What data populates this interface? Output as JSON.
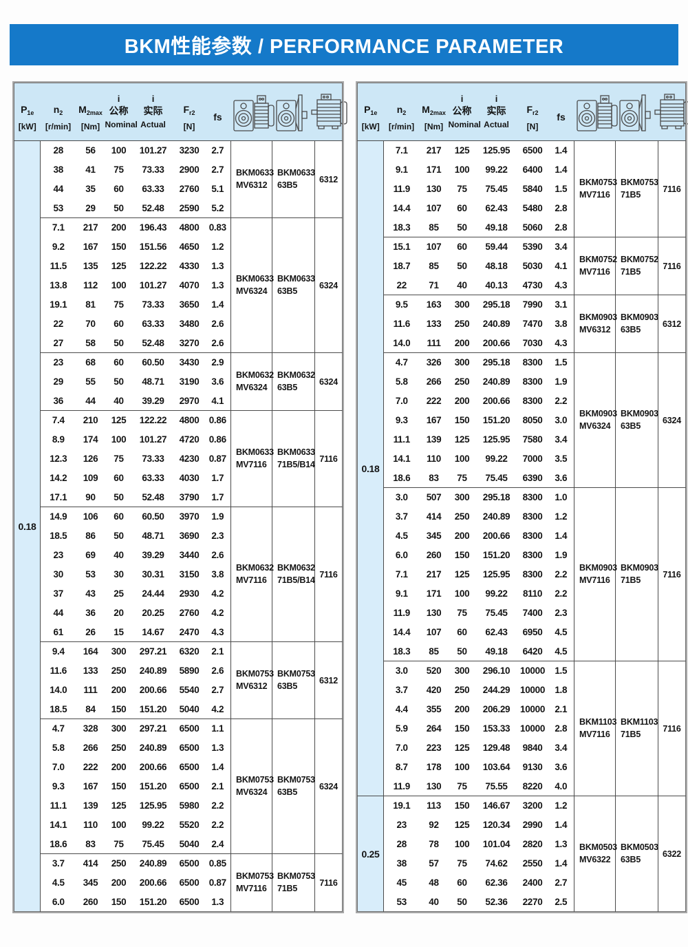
{
  "title": "BKM性能参数 / PERFORMANCE PARAMETER",
  "colors": {
    "banner_blue": "#1579c9",
    "header_bg": "#cde7f6",
    "power_col_bg": "#d8edfa",
    "grid_line": "#4a4a4a",
    "title_text": "#ffffff"
  },
  "header": {
    "columns": [
      {
        "key": "p1e",
        "top": "",
        "main": "P",
        "sub": "1e",
        "bottom": "[kW]"
      },
      {
        "key": "n2",
        "top": "",
        "main": "n",
        "sub": "2",
        "bottom": "[r/min]"
      },
      {
        "key": "m2max",
        "top": "",
        "main": "M",
        "sub": "2max",
        "bottom": "[Nm]"
      },
      {
        "key": "i-nominal",
        "top": "i",
        "main": "公称",
        "sub": "",
        "bottom": "Nominal"
      },
      {
        "key": "i-actual",
        "top": "i",
        "main": "实际",
        "sub": "",
        "bottom": "Actual"
      },
      {
        "key": "fr2",
        "top": "",
        "main": "F",
        "sub": "r2",
        "bottom": "[N]"
      },
      {
        "key": "fs",
        "top": "",
        "main": "fs",
        "sub": "",
        "bottom": ""
      }
    ],
    "icons": [
      {
        "name": "worm-gearmotor-icon"
      },
      {
        "name": "worm-gearbox-flange-icon"
      },
      {
        "name": "motor-icon"
      }
    ]
  },
  "tables": [
    {
      "name": "left",
      "groups": [
        {
          "power": "0.18",
          "block_count": 8
        }
      ],
      "blocks": [
        {
          "m1": [
            "BKM0633",
            "MV6312"
          ],
          "m2": [
            "BKM0633",
            "63B5"
          ],
          "m3": "6312",
          "rows": [
            [
              "28",
              "56",
              "100",
              "101.27",
              "3230",
              "2.7"
            ],
            [
              "38",
              "41",
              "75",
              "73.33",
              "2900",
              "2.7"
            ],
            [
              "44",
              "35",
              "60",
              "63.33",
              "2760",
              "5.1"
            ],
            [
              "53",
              "29",
              "50",
              "52.48",
              "2590",
              "5.2"
            ]
          ]
        },
        {
          "m1": [
            "BKM0633",
            "MV6324"
          ],
          "m2": [
            "BKM0633",
            "63B5"
          ],
          "m3": "6324",
          "rows": [
            [
              "7.1",
              "217",
              "200",
              "196.43",
              "4800",
              "0.83"
            ],
            [
              "9.2",
              "167",
              "150",
              "151.56",
              "4650",
              "1.2"
            ],
            [
              "11.5",
              "135",
              "125",
              "122.22",
              "4330",
              "1.3"
            ],
            [
              "13.8",
              "112",
              "100",
              "101.27",
              "4070",
              "1.3"
            ],
            [
              "19.1",
              "81",
              "75",
              "73.33",
              "3650",
              "1.4"
            ],
            [
              "22",
              "70",
              "60",
              "63.33",
              "3480",
              "2.6"
            ],
            [
              "27",
              "58",
              "50",
              "52.48",
              "3270",
              "2.6"
            ]
          ]
        },
        {
          "m1": [
            "BKM0632",
            "MV6324"
          ],
          "m2": [
            "BKM0632",
            "63B5"
          ],
          "m3": "6324",
          "rows": [
            [
              "23",
              "68",
              "60",
              "60.50",
              "3430",
              "2.9"
            ],
            [
              "29",
              "55",
              "50",
              "48.71",
              "3190",
              "3.6"
            ],
            [
              "36",
              "44",
              "40",
              "39.29",
              "2970",
              "4.1"
            ]
          ]
        },
        {
          "m1": [
            "BKM0633",
            "MV7116"
          ],
          "m2": [
            "BKM0633",
            "71B5/B14"
          ],
          "m3": "7116",
          "rows": [
            [
              "7.4",
              "210",
              "125",
              "122.22",
              "4800",
              "0.86"
            ],
            [
              "8.9",
              "174",
              "100",
              "101.27",
              "4720",
              "0.86"
            ],
            [
              "12.3",
              "126",
              "75",
              "73.33",
              "4230",
              "0.87"
            ],
            [
              "14.2",
              "109",
              "60",
              "63.33",
              "4030",
              "1.7"
            ],
            [
              "17.1",
              "90",
              "50",
              "52.48",
              "3790",
              "1.7"
            ]
          ]
        },
        {
          "m1": [
            "BKM0632",
            "MV7116"
          ],
          "m2": [
            "BKM0632",
            "71B5/B14"
          ],
          "m3": "7116",
          "rows": [
            [
              "14.9",
              "106",
              "60",
              "60.50",
              "3970",
              "1.9"
            ],
            [
              "18.5",
              "86",
              "50",
              "48.71",
              "3690",
              "2.3"
            ],
            [
              "23",
              "69",
              "40",
              "39.29",
              "3440",
              "2.6"
            ],
            [
              "30",
              "53",
              "30",
              "30.31",
              "3150",
              "3.8"
            ],
            [
              "37",
              "43",
              "25",
              "24.44",
              "2930",
              "4.2"
            ],
            [
              "44",
              "36",
              "20",
              "20.25",
              "2760",
              "4.2"
            ],
            [
              "61",
              "26",
              "15",
              "14.67",
              "2470",
              "4.3"
            ]
          ]
        },
        {
          "m1": [
            "BKM0753",
            "MV6312"
          ],
          "m2": [
            "BKM0753",
            "63B5"
          ],
          "m3": "6312",
          "rows": [
            [
              "9.4",
              "164",
              "300",
              "297.21",
              "6320",
              "2.1"
            ],
            [
              "11.6",
              "133",
              "250",
              "240.89",
              "5890",
              "2.6"
            ],
            [
              "14.0",
              "111",
              "200",
              "200.66",
              "5540",
              "2.7"
            ],
            [
              "18.5",
              "84",
              "150",
              "151.20",
              "5040",
              "4.2"
            ]
          ]
        },
        {
          "m1": [
            "BKM0753",
            "MV6324"
          ],
          "m2": [
            "BKM0753",
            "63B5"
          ],
          "m3": "6324",
          "rows": [
            [
              "4.7",
              "328",
              "300",
              "297.21",
              "6500",
              "1.1"
            ],
            [
              "5.8",
              "266",
              "250",
              "240.89",
              "6500",
              "1.3"
            ],
            [
              "7.0",
              "222",
              "200",
              "200.66",
              "6500",
              "1.4"
            ],
            [
              "9.3",
              "167",
              "150",
              "151.20",
              "6500",
              "2.1"
            ],
            [
              "11.1",
              "139",
              "125",
              "125.95",
              "5980",
              "2.2"
            ],
            [
              "14.1",
              "110",
              "100",
              "99.22",
              "5520",
              "2.2"
            ],
            [
              "18.6",
              "83",
              "75",
              "75.45",
              "5040",
              "2.4"
            ]
          ]
        },
        {
          "m1": [
            "BKM0753",
            "MV7116"
          ],
          "m2": [
            "BKM0753",
            "71B5"
          ],
          "m3": "7116",
          "rows": [
            [
              "3.7",
              "414",
              "250",
              "240.89",
              "6500",
              "0.85"
            ],
            [
              "4.5",
              "345",
              "200",
              "200.66",
              "6500",
              "0.87"
            ],
            [
              "6.0",
              "260",
              "150",
              "151.20",
              "6500",
              "1.3"
            ]
          ]
        }
      ]
    },
    {
      "name": "right",
      "groups": [
        {
          "power": "0.18",
          "block_count": 6
        },
        {
          "power": "0.25",
          "block_count": 1
        }
      ],
      "blocks": [
        {
          "m1": [
            "BKM0753",
            "MV7116"
          ],
          "m2": [
            "BKM0753",
            "71B5"
          ],
          "m3": "7116",
          "rows": [
            [
              "7.1",
              "217",
              "125",
              "125.95",
              "6500",
              "1.4"
            ],
            [
              "9.1",
              "171",
              "100",
              "99.22",
              "6400",
              "1.4"
            ],
            [
              "11.9",
              "130",
              "75",
              "75.45",
              "5840",
              "1.5"
            ],
            [
              "14.4",
              "107",
              "60",
              "62.43",
              "5480",
              "2.8"
            ],
            [
              "18.3",
              "85",
              "50",
              "49.18",
              "5060",
              "2.8"
            ]
          ]
        },
        {
          "m1": [
            "BKM0752",
            "MV7116"
          ],
          "m2": [
            "BKM0752",
            "71B5"
          ],
          "m3": "7116",
          "rows": [
            [
              "15.1",
              "107",
              "60",
              "59.44",
              "5390",
              "3.4"
            ],
            [
              "18.7",
              "85",
              "50",
              "48.18",
              "5030",
              "4.1"
            ],
            [
              "22",
              "71",
              "40",
              "40.13",
              "4730",
              "4.3"
            ]
          ]
        },
        {
          "m1": [
            "BKM0903",
            "MV6312"
          ],
          "m2": [
            "BKM0903",
            "63B5"
          ],
          "m3": "6312",
          "rows": [
            [
              "9.5",
              "163",
              "300",
              "295.18",
              "7990",
              "3.1"
            ],
            [
              "11.6",
              "133",
              "250",
              "240.89",
              "7470",
              "3.8"
            ],
            [
              "14.0",
              "111",
              "200",
              "200.66",
              "7030",
              "4.3"
            ]
          ]
        },
        {
          "m1": [
            "BKM0903",
            "MV6324"
          ],
          "m2": [
            "BKM0903",
            "63B5"
          ],
          "m3": "6324",
          "rows": [
            [
              "4.7",
              "326",
              "300",
              "295.18",
              "8300",
              "1.5"
            ],
            [
              "5.8",
              "266",
              "250",
              "240.89",
              "8300",
              "1.9"
            ],
            [
              "7.0",
              "222",
              "200",
              "200.66",
              "8300",
              "2.2"
            ],
            [
              "9.3",
              "167",
              "150",
              "151.20",
              "8050",
              "3.0"
            ],
            [
              "11.1",
              "139",
              "125",
              "125.95",
              "7580",
              "3.4"
            ],
            [
              "14.1",
              "110",
              "100",
              "99.22",
              "7000",
              "3.5"
            ],
            [
              "18.6",
              "83",
              "75",
              "75.45",
              "6390",
              "3.6"
            ]
          ]
        },
        {
          "m1": [
            "BKM0903",
            "MV7116"
          ],
          "m2": [
            "BKM0903",
            "71B5"
          ],
          "m3": "7116",
          "rows": [
            [
              "3.0",
              "507",
              "300",
              "295.18",
              "8300",
              "1.0"
            ],
            [
              "3.7",
              "414",
              "250",
              "240.89",
              "8300",
              "1.2"
            ],
            [
              "4.5",
              "345",
              "200",
              "200.66",
              "8300",
              "1.4"
            ],
            [
              "6.0",
              "260",
              "150",
              "151.20",
              "8300",
              "1.9"
            ],
            [
              "7.1",
              "217",
              "125",
              "125.95",
              "8300",
              "2.2"
            ],
            [
              "9.1",
              "171",
              "100",
              "99.22",
              "8110",
              "2.2"
            ],
            [
              "11.9",
              "130",
              "75",
              "75.45",
              "7400",
              "2.3"
            ],
            [
              "14.4",
              "107",
              "60",
              "62.43",
              "6950",
              "4.5"
            ],
            [
              "18.3",
              "85",
              "50",
              "49.18",
              "6420",
              "4.5"
            ]
          ]
        },
        {
          "m1": [
            "BKM1103",
            "MV7116"
          ],
          "m2": [
            "BKM1103",
            "71B5"
          ],
          "m3": "7116",
          "rows": [
            [
              "3.0",
              "520",
              "300",
              "296.10",
              "10000",
              "1.5"
            ],
            [
              "3.7",
              "420",
              "250",
              "244.29",
              "10000",
              "1.8"
            ],
            [
              "4.4",
              "355",
              "200",
              "206.29",
              "10000",
              "2.1"
            ],
            [
              "5.9",
              "264",
              "150",
              "153.33",
              "10000",
              "2.8"
            ],
            [
              "7.0",
              "223",
              "125",
              "129.48",
              "9840",
              "3.4"
            ],
            [
              "8.7",
              "178",
              "100",
              "103.64",
              "9130",
              "3.6"
            ],
            [
              "11.9",
              "130",
              "75",
              "75.55",
              "8220",
              "4.0"
            ]
          ]
        },
        {
          "m1": [
            "BKM0503",
            "MV6322"
          ],
          "m2": [
            "BKM0503",
            "63B5"
          ],
          "m3": "6322",
          "rows": [
            [
              "19.1",
              "113",
              "150",
              "146.67",
              "3200",
              "1.2"
            ],
            [
              "23",
              "92",
              "125",
              "120.34",
              "2990",
              "1.4"
            ],
            [
              "28",
              "78",
              "100",
              "101.04",
              "2820",
              "1.3"
            ],
            [
              "38",
              "57",
              "75",
              "74.62",
              "2550",
              "1.4"
            ],
            [
              "45",
              "48",
              "60",
              "62.36",
              "2400",
              "2.7"
            ],
            [
              "53",
              "40",
              "50",
              "52.36",
              "2270",
              "2.5"
            ]
          ]
        }
      ]
    }
  ]
}
